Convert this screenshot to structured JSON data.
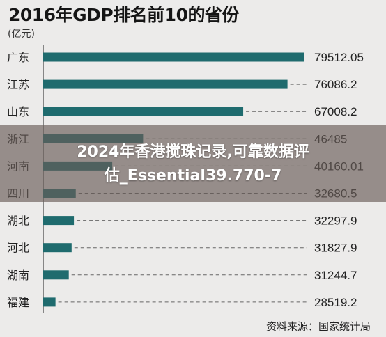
{
  "chart_data": {
    "type": "bar",
    "orientation": "horizontal",
    "title": "2016年GDP排名前10的省份",
    "unit_label": "(亿元)",
    "categories": [
      "广东",
      "江苏",
      "山东",
      "浙江",
      "河南",
      "四川",
      "湖北",
      "河北",
      "湖南",
      "福建"
    ],
    "values": [
      79512.05,
      76086.2,
      67008.2,
      46485,
      40160.01,
      32680.5,
      32297.9,
      31827.9,
      31244.7,
      28519.2
    ],
    "value_labels": [
      "79512.05",
      "76086.2",
      "67008.2",
      "46485",
      "40160.01",
      "32680.5",
      "32297.9",
      "31827.9",
      "31244.7",
      "28519.2"
    ],
    "xlim": [
      26000,
      80000
    ],
    "grid": false,
    "source": "资料来源：国家统计局",
    "colors": {
      "bar": "#1f6b6e",
      "leader": "#666666",
      "background": "#ecebea"
    }
  },
  "overlay": {
    "line1": "2024年香港搅珠记录,可靠数据评",
    "line2": "估_Essential39.770-7"
  }
}
